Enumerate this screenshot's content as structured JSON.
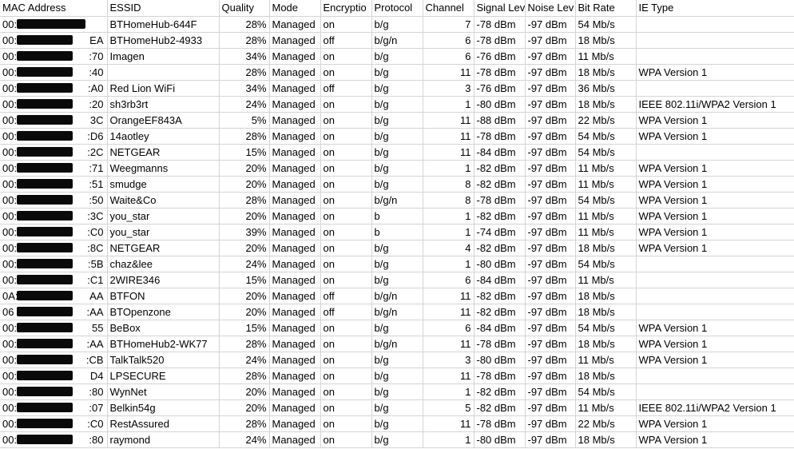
{
  "headers": {
    "mac": "MAC Address",
    "essid": "ESSID",
    "quality": "Quality",
    "mode": "Mode",
    "encryption": "Encryptio",
    "protocol": "Protocol",
    "channel": "Channel",
    "signal": "Signal Lev",
    "noise": "Noise Lev",
    "bitrate": "Bit Rate",
    "ie": "IE Type"
  },
  "rows": [
    {
      "mac_prefix": "00:",
      "mac_suffix": "",
      "essid": "BTHomeHub-644F",
      "quality": "28%",
      "mode": "Managed",
      "encryption": "on",
      "protocol": "b/g",
      "channel": "7",
      "signal": "-78 dBm",
      "noise": "-97 dBm",
      "bitrate": "54 Mb/s",
      "ie": ""
    },
    {
      "mac_prefix": "00:",
      "mac_suffix": "EA",
      "essid": "BTHomeHub2-4933",
      "quality": "28%",
      "mode": "Managed",
      "encryption": "off",
      "protocol": "b/g/n",
      "channel": "6",
      "signal": "-78 dBm",
      "noise": "-97 dBm",
      "bitrate": "18 Mb/s",
      "ie": ""
    },
    {
      "mac_prefix": "00:",
      "mac_suffix": ":70",
      "essid": "Imagen",
      "quality": "34%",
      "mode": "Managed",
      "encryption": "on",
      "protocol": "b/g",
      "channel": "6",
      "signal": "-76 dBm",
      "noise": "-97 dBm",
      "bitrate": "11 Mb/s",
      "ie": ""
    },
    {
      "mac_prefix": "00:",
      "mac_suffix": ":40",
      "essid": "",
      "quality": "28%",
      "mode": "Managed",
      "encryption": "on",
      "protocol": "b/g",
      "channel": "11",
      "signal": "-78 dBm",
      "noise": "-97 dBm",
      "bitrate": "18 Mb/s",
      "ie": "WPA Version 1"
    },
    {
      "mac_prefix": "00:",
      "mac_suffix": ":A0",
      "essid": "Red Lion WiFi",
      "quality": "34%",
      "mode": "Managed",
      "encryption": "off",
      "protocol": "b/g",
      "channel": "3",
      "signal": "-76 dBm",
      "noise": "-97 dBm",
      "bitrate": "36 Mb/s",
      "ie": ""
    },
    {
      "mac_prefix": "00:",
      "mac_suffix": ":20",
      "essid": "sh3rb3rt",
      "quality": "24%",
      "mode": "Managed",
      "encryption": "on",
      "protocol": "b/g",
      "channel": "1",
      "signal": "-80 dBm",
      "noise": "-97 dBm",
      "bitrate": "18 Mb/s",
      "ie": "IEEE 802.11i/WPA2 Version 1"
    },
    {
      "mac_prefix": "00:",
      "mac_suffix": "3C",
      "essid": "OrangeEF843A",
      "quality": "5%",
      "mode": "Managed",
      "encryption": "on",
      "protocol": "b/g",
      "channel": "11",
      "signal": "-88 dBm",
      "noise": "-97 dBm",
      "bitrate": "22 Mb/s",
      "ie": "WPA Version 1"
    },
    {
      "mac_prefix": "00:",
      "mac_suffix": ":D6",
      "essid": "14aotley",
      "quality": "28%",
      "mode": "Managed",
      "encryption": "on",
      "protocol": "b/g",
      "channel": "11",
      "signal": "-78 dBm",
      "noise": "-97 dBm",
      "bitrate": "54 Mb/s",
      "ie": "WPA Version 1"
    },
    {
      "mac_prefix": "00:",
      "mac_suffix": ":2C",
      "essid": "NETGEAR",
      "quality": "15%",
      "mode": "Managed",
      "encryption": "on",
      "protocol": "b/g",
      "channel": "11",
      "signal": "-84 dBm",
      "noise": "-97 dBm",
      "bitrate": "54 Mb/s",
      "ie": ""
    },
    {
      "mac_prefix": "00:",
      "mac_suffix": ":71",
      "essid": "Weegmanns",
      "quality": "20%",
      "mode": "Managed",
      "encryption": "on",
      "protocol": "b/g",
      "channel": "1",
      "signal": "-82 dBm",
      "noise": "-97 dBm",
      "bitrate": "11 Mb/s",
      "ie": "WPA Version 1"
    },
    {
      "mac_prefix": "00:",
      "mac_suffix": ":51",
      "essid": "smudge",
      "quality": "20%",
      "mode": "Managed",
      "encryption": "on",
      "protocol": "b/g",
      "channel": "8",
      "signal": "-82 dBm",
      "noise": "-97 dBm",
      "bitrate": "11 Mb/s",
      "ie": "WPA Version 1"
    },
    {
      "mac_prefix": "00:",
      "mac_suffix": ":50",
      "essid": "Waite&Co",
      "quality": "28%",
      "mode": "Managed",
      "encryption": "on",
      "protocol": "b/g/n",
      "channel": "8",
      "signal": "-78 dBm",
      "noise": "-97 dBm",
      "bitrate": "54 Mb/s",
      "ie": "WPA Version 1"
    },
    {
      "mac_prefix": "00:",
      "mac_suffix": ":3C",
      "essid": "you_star",
      "quality": "20%",
      "mode": "Managed",
      "encryption": "on",
      "protocol": "b",
      "channel": "1",
      "signal": "-82 dBm",
      "noise": "-97 dBm",
      "bitrate": "11 Mb/s",
      "ie": "WPA Version 1"
    },
    {
      "mac_prefix": "00:",
      "mac_suffix": ":C0",
      "essid": "you_star",
      "quality": "39%",
      "mode": "Managed",
      "encryption": "on",
      "protocol": "b",
      "channel": "1",
      "signal": "-74 dBm",
      "noise": "-97 dBm",
      "bitrate": "11 Mb/s",
      "ie": "WPA Version 1"
    },
    {
      "mac_prefix": "00:",
      "mac_suffix": ":8C",
      "essid": "NETGEAR",
      "quality": "20%",
      "mode": "Managed",
      "encryption": "on",
      "protocol": "b/g",
      "channel": "4",
      "signal": "-82 dBm",
      "noise": "-97 dBm",
      "bitrate": "18 Mb/s",
      "ie": "WPA Version 1"
    },
    {
      "mac_prefix": "00:",
      "mac_suffix": ":5B",
      "essid": "chaz&lee",
      "quality": "24%",
      "mode": "Managed",
      "encryption": "on",
      "protocol": "b/g",
      "channel": "1",
      "signal": "-80 dBm",
      "noise": "-97 dBm",
      "bitrate": "54 Mb/s",
      "ie": ""
    },
    {
      "mac_prefix": "00:",
      "mac_suffix": ":C1",
      "essid": "2WIRE346",
      "quality": "15%",
      "mode": "Managed",
      "encryption": "on",
      "protocol": "b/g",
      "channel": "6",
      "signal": "-84 dBm",
      "noise": "-97 dBm",
      "bitrate": "11 Mb/s",
      "ie": ""
    },
    {
      "mac_prefix": "0A:",
      "mac_suffix": "AA",
      "essid": "BTFON",
      "quality": "20%",
      "mode": "Managed",
      "encryption": "off",
      "protocol": "b/g/n",
      "channel": "11",
      "signal": "-82 dBm",
      "noise": "-97 dBm",
      "bitrate": "18 Mb/s",
      "ie": ""
    },
    {
      "mac_prefix": "06",
      "mac_suffix": ":AA",
      "essid": "BTOpenzone",
      "quality": "20%",
      "mode": "Managed",
      "encryption": "off",
      "protocol": "b/g/n",
      "channel": "11",
      "signal": "-82 dBm",
      "noise": "-97 dBm",
      "bitrate": "18 Mb/s",
      "ie": ""
    },
    {
      "mac_prefix": "00:",
      "mac_suffix": "55",
      "essid": "BeBox",
      "quality": "15%",
      "mode": "Managed",
      "encryption": "on",
      "protocol": "b/g",
      "channel": "6",
      "signal": "-84 dBm",
      "noise": "-97 dBm",
      "bitrate": "54 Mb/s",
      "ie": "WPA Version 1"
    },
    {
      "mac_prefix": "00:",
      "mac_suffix": ":AA",
      "essid": "BTHomeHub2-WK77",
      "quality": "28%",
      "mode": "Managed",
      "encryption": "on",
      "protocol": "b/g/n",
      "channel": "11",
      "signal": "-78 dBm",
      "noise": "-97 dBm",
      "bitrate": "18 Mb/s",
      "ie": "WPA Version 1"
    },
    {
      "mac_prefix": "00:",
      "mac_suffix": ":CB",
      "essid": "TalkTalk520",
      "quality": "24%",
      "mode": "Managed",
      "encryption": "on",
      "protocol": "b/g",
      "channel": "3",
      "signal": "-80 dBm",
      "noise": "-97 dBm",
      "bitrate": "11 Mb/s",
      "ie": "WPA Version 1"
    },
    {
      "mac_prefix": "00:",
      "mac_suffix": "D4",
      "essid": "LPSECURE",
      "quality": "28%",
      "mode": "Managed",
      "encryption": "on",
      "protocol": "b/g",
      "channel": "11",
      "signal": "-78 dBm",
      "noise": "-97 dBm",
      "bitrate": "18 Mb/s",
      "ie": ""
    },
    {
      "mac_prefix": "00:",
      "mac_suffix": ":80",
      "essid": "WynNet",
      "quality": "20%",
      "mode": "Managed",
      "encryption": "on",
      "protocol": "b/g",
      "channel": "1",
      "signal": "-82 dBm",
      "noise": "-97 dBm",
      "bitrate": "54 Mb/s",
      "ie": ""
    },
    {
      "mac_prefix": "00:",
      "mac_suffix": ":07",
      "essid": "Belkin54g",
      "quality": "20%",
      "mode": "Managed",
      "encryption": "on",
      "protocol": "b/g",
      "channel": "5",
      "signal": "-82 dBm",
      "noise": "-97 dBm",
      "bitrate": "11 Mb/s",
      "ie": "IEEE 802.11i/WPA2 Version 1"
    },
    {
      "mac_prefix": "00:",
      "mac_suffix": ":C0",
      "essid": "RestAssured",
      "quality": "28%",
      "mode": "Managed",
      "encryption": "on",
      "protocol": "b/g",
      "channel": "11",
      "signal": "-78 dBm",
      "noise": "-97 dBm",
      "bitrate": "22 Mb/s",
      "ie": "WPA Version 1"
    },
    {
      "mac_prefix": "00:",
      "mac_suffix": ":80",
      "essid": "raymond",
      "quality": "24%",
      "mode": "Managed",
      "encryption": "on",
      "protocol": "b/g",
      "channel": "1",
      "signal": "-80 dBm",
      "noise": "-97 dBm",
      "bitrate": "18 Mb/s",
      "ie": "WPA Version 1"
    }
  ]
}
